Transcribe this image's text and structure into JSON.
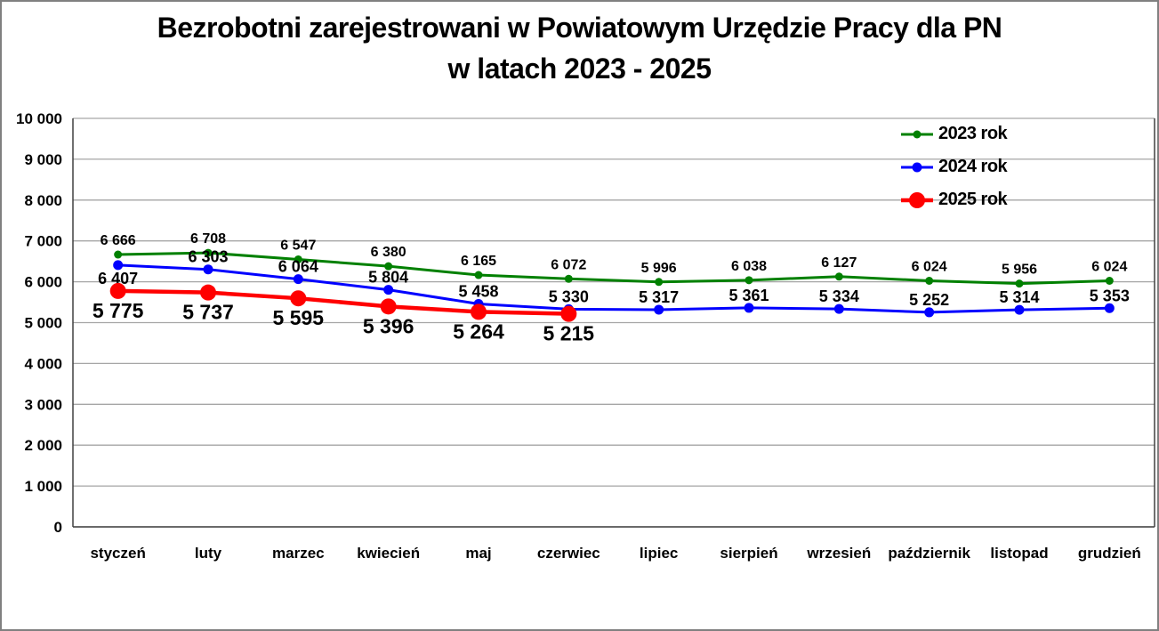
{
  "title": {
    "line1": "Bezrobotni zarejestrowani w Powiatowym Urzędzie Pracy dla PN",
    "line2": "w latach 2023 - 2025"
  },
  "chart_data": {
    "type": "line",
    "title": "Bezrobotni zarejestrowani w Powiatowym Urzędzie Pracy dla PN w latach 2023 - 2025",
    "categories": [
      "styczeń",
      "luty",
      "marzec",
      "kwiecień",
      "maj",
      "czerwiec",
      "lipiec",
      "sierpień",
      "wrzesień",
      "październik",
      "listopad",
      "grudzień"
    ],
    "series": [
      {
        "name": "2023 rok",
        "color": "#008000",
        "marker": "circle",
        "label_position": "above",
        "values": [
          6666,
          6708,
          6547,
          6380,
          6165,
          6072,
          5996,
          6038,
          6127,
          6024,
          5956,
          6024
        ]
      },
      {
        "name": "2024 rok",
        "color": "#0000FF",
        "marker": "circle",
        "label_position": "above",
        "label_exceptions": {
          "0": "below"
        },
        "values": [
          6407,
          6303,
          6064,
          5804,
          5458,
          5330,
          5317,
          5361,
          5334,
          5252,
          5314,
          5353
        ]
      },
      {
        "name": "2025 rok",
        "color": "#FF0000",
        "marker": "circle-large",
        "label_position": "below",
        "values": [
          5775,
          5737,
          5595,
          5396,
          5264,
          5215
        ]
      }
    ],
    "ylim": [
      0,
      10000
    ],
    "ytick_step": 1000,
    "ytick_labels": [
      "0",
      "1 000",
      "2 000",
      "3 000",
      "4 000",
      "5 000",
      "6 000",
      "7 000",
      "8 000",
      "9 000",
      "10 000"
    ],
    "grid": true,
    "gridline_color": "#A6A6A6",
    "axis_color": "#404040",
    "legend_position": "top-right",
    "number_format": "space-thousands"
  }
}
